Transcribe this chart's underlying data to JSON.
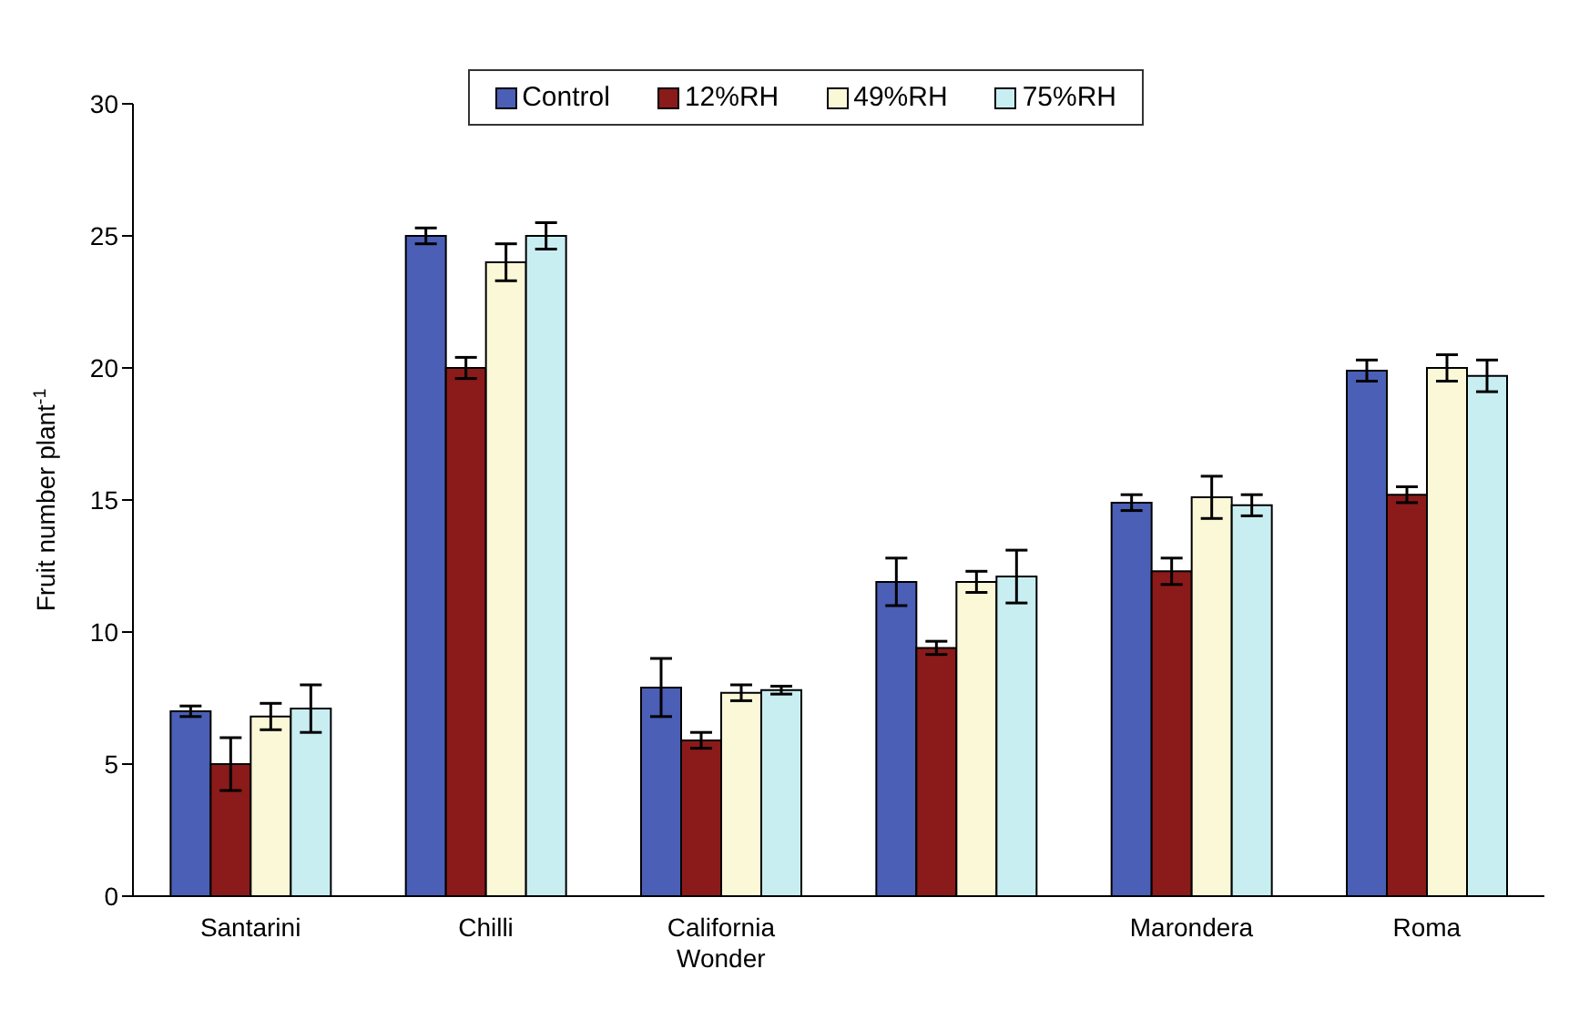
{
  "chart_data": {
    "type": "bar",
    "ylabel": "Fruit number plant$^{-1}$",
    "categories": [
      "Santarini",
      "Chilli",
      "California Wonder",
      null,
      "Marondera",
      "Roma"
    ],
    "series": [
      {
        "name": "Control",
        "color": "#4a5fb5",
        "values": [
          7.0,
          25.0,
          7.9,
          11.9,
          14.9,
          19.9
        ],
        "errors": [
          0.2,
          0.3,
          1.1,
          0.9,
          0.3,
          0.4
        ]
      },
      {
        "name": "12%RH",
        "color": "#8b1a1a",
        "values": [
          5.0,
          20.0,
          5.9,
          9.4,
          12.3,
          15.2
        ],
        "errors": [
          1.0,
          0.4,
          0.3,
          0.25,
          0.5,
          0.3
        ]
      },
      {
        "name": "49%RH",
        "color": "#fbf8d8",
        "values": [
          6.8,
          24.0,
          7.7,
          11.9,
          15.1,
          20.0
        ],
        "errors": [
          0.5,
          0.7,
          0.3,
          0.4,
          0.8,
          0.5
        ]
      },
      {
        "name": "75%RH",
        "color": "#c8eef2",
        "values": [
          7.1,
          25.0,
          7.8,
          12.1,
          14.8,
          19.7
        ],
        "errors": [
          0.9,
          0.5,
          0.15,
          1.0,
          0.4,
          0.6
        ]
      }
    ],
    "ylim": [
      0,
      30
    ],
    "yticks": [
      0,
      5,
      10,
      15,
      20,
      25,
      30
    ],
    "grid": false,
    "legend": "top right"
  }
}
